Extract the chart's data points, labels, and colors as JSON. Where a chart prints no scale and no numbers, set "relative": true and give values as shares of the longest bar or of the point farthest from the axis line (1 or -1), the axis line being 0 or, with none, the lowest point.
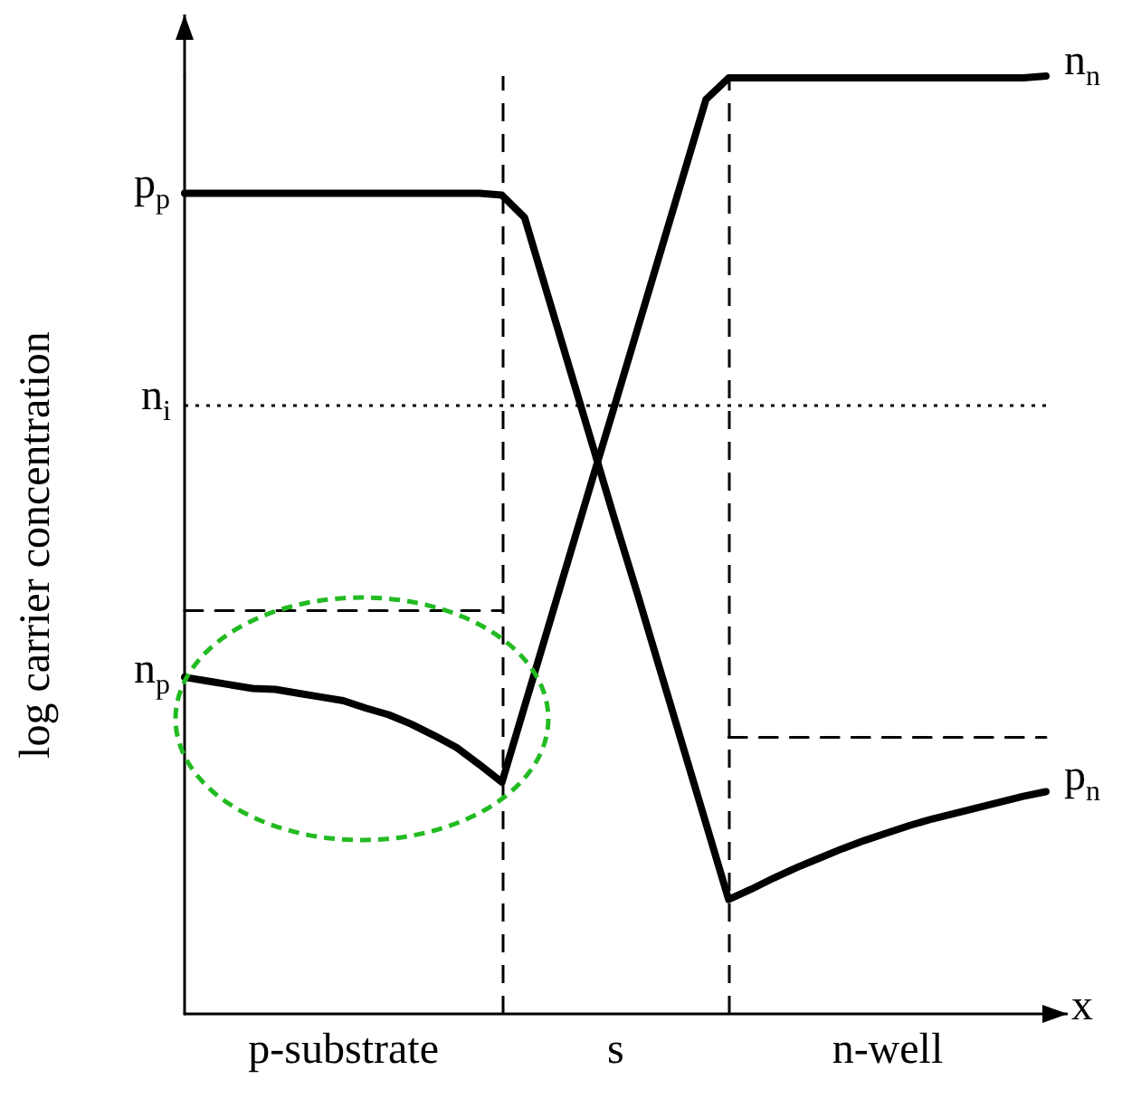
{
  "chart_data": {
    "type": "line",
    "relative": true,
    "ylabel": "log carrier concentration",
    "xlabel": "x",
    "categories": [
      null,
      null,
      null,
      null,
      null,
      null,
      null,
      null,
      null,
      null,
      null,
      null,
      null,
      null,
      null,
      null,
      null,
      null,
      null,
      null,
      null,
      null,
      null,
      null,
      null,
      null,
      null,
      null,
      null,
      null,
      null,
      null,
      null,
      null,
      null,
      null,
      null,
      null,
      null
    ],
    "series": [
      {
        "name": "n$_{n}$",
        "color": "#000000",
        "values": [
          0.359,
          0.355,
          0.351,
          0.347,
          0.346,
          0.342,
          0.338,
          0.334,
          0.326,
          0.319,
          0.309,
          0.297,
          0.284,
          0.266,
          0.247,
          0.328,
          0.409,
          0.49,
          0.571,
          0.651,
          0.732,
          0.813,
          0.894,
          0.975,
          0.998,
          0.998,
          0.998,
          0.998,
          0.998,
          0.998,
          0.998,
          0.998,
          0.998,
          0.998,
          0.998,
          0.998,
          0.998,
          0.998,
          1
        ]
      },
      {
        "name": "p$_{n}$",
        "color": "#000000",
        "values": [
          0.875,
          0.875,
          0.875,
          0.875,
          0.875,
          0.875,
          0.875,
          0.875,
          0.875,
          0.875,
          0.875,
          0.875,
          0.875,
          0.875,
          0.873,
          0.849,
          0.768,
          0.687,
          0.606,
          0.525,
          0.446,
          0.365,
          0.284,
          0.203,
          0.122,
          0.133,
          0.145,
          0.156,
          0.166,
          0.176,
          0.185,
          0.193,
          0.201,
          0.208,
          0.214,
          0.22,
          0.226,
          0.232,
          0.237
        ]
      },
      {
        "color": "#000000",
        "line_style": "dashed",
        "values": [
          0.43,
          0.43,
          0.43,
          0.43,
          0.43,
          0.43,
          0.43,
          0.43,
          0.43,
          0.43,
          0.43,
          0.43,
          0.43,
          0.43,
          0.43,
          null,
          null,
          null,
          null,
          null,
          null,
          null,
          null,
          null,
          null,
          null,
          null,
          null,
          null,
          null,
          null,
          null,
          null,
          null,
          null,
          null,
          null,
          null,
          null
        ]
      },
      {
        "color": "#000000",
        "line_style": "dashed",
        "values": [
          null,
          null,
          null,
          null,
          null,
          null,
          null,
          null,
          null,
          null,
          null,
          null,
          null,
          null,
          null,
          null,
          null,
          null,
          null,
          null,
          null,
          null,
          null,
          null,
          0.295,
          0.295,
          0.295,
          0.295,
          0.295,
          0.295,
          0.295,
          0.295,
          0.295,
          0.295,
          0.295,
          0.295,
          0.295,
          0.295,
          0.295
        ]
      }
    ],
    "ref_lines": [
      {
        "axis": "y",
        "value": 0.649,
        "label": "n$_{i}$",
        "line_style": "dotted",
        "color": "#000000"
      }
    ],
    "annotations": [
      "p-substrate",
      "s",
      "n-well",
      "n$_{p}$",
      "p$_{p}$"
    ],
    "line_style": "solid",
    "marker": "none",
    "grid": false,
    "legend": false
  }
}
